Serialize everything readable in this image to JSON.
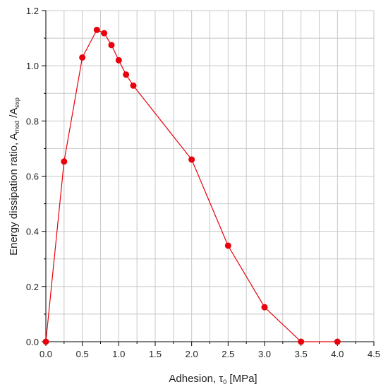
{
  "chart_data": {
    "type": "line",
    "xlabel": {
      "main": "Adhesion, ",
      "symbol": "τ",
      "symbol_sub": "0",
      "unit": " [MPa]"
    },
    "ylabel": {
      "main": "Energy dissipation ratio, A",
      "sub1": "mod",
      "mid": " /A",
      "sub2": "exp"
    },
    "xlim": [
      0,
      4.5
    ],
    "ylim": [
      0,
      1.2
    ],
    "x_ticks": [
      "0.0",
      "0.5",
      "1.0",
      "1.5",
      "2.0",
      "2.5",
      "3.0",
      "3.5",
      "4.0",
      "4.5"
    ],
    "y_ticks": [
      "0.0",
      "0.2",
      "0.4",
      "0.6",
      "0.8",
      "1.0",
      "1.2"
    ],
    "x_ticks_values": [
      0,
      0.5,
      1.0,
      1.5,
      2.0,
      2.5,
      3.0,
      3.5,
      4.0,
      4.5
    ],
    "y_ticks_values": [
      0,
      0.2,
      0.4,
      0.6,
      0.8,
      1.0,
      1.2
    ],
    "grid": true,
    "series": [
      {
        "x": [
          0.0,
          0.25,
          0.5,
          0.7,
          0.8,
          0.9,
          1.0,
          1.1,
          1.2,
          2.0,
          2.5,
          3.0,
          3.5,
          4.0
        ],
        "y": [
          0.0,
          0.653,
          1.03,
          1.13,
          1.118,
          1.075,
          1.02,
          0.968,
          0.928,
          0.66,
          0.348,
          0.125,
          0.0,
          0.0
        ],
        "color": "#e8000b"
      }
    ]
  }
}
